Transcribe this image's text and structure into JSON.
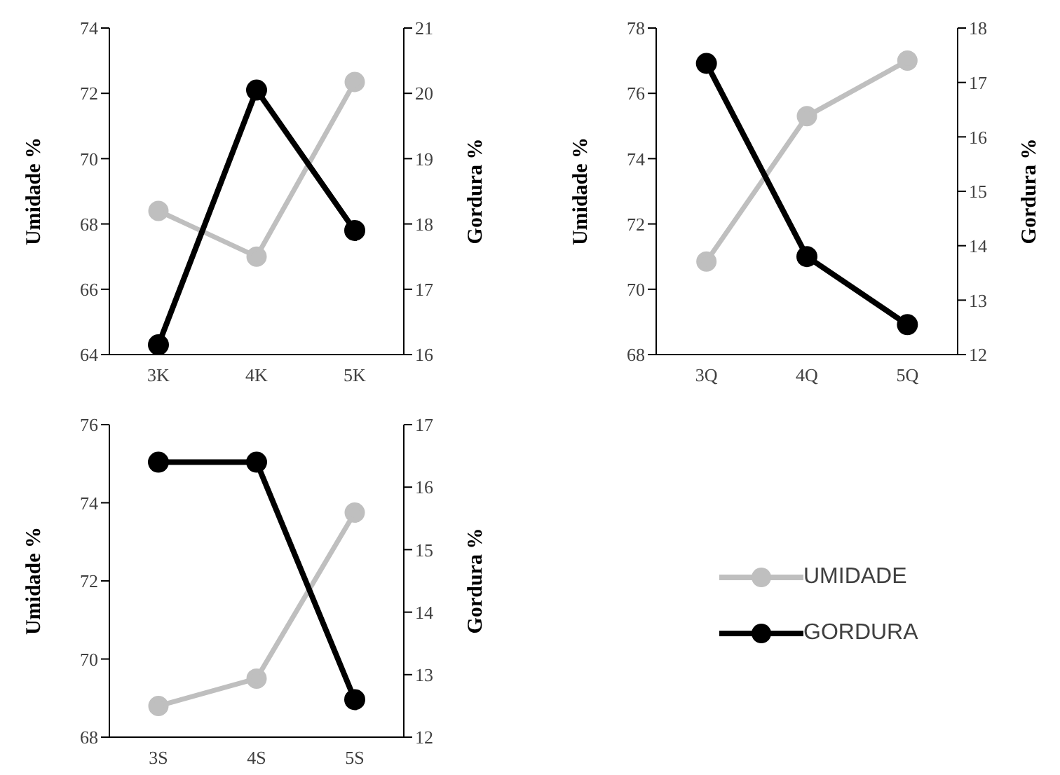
{
  "chart_data": [
    {
      "type": "line",
      "categories": [
        "3K",
        "4K",
        "5K"
      ],
      "ylabel": "Umidade %",
      "y2label": "Gordura %",
      "ylim": [
        64,
        74
      ],
      "yticks": [
        64,
        66,
        68,
        70,
        72,
        74
      ],
      "y2lim": [
        16,
        21
      ],
      "y2ticks": [
        16,
        17,
        18,
        19,
        20,
        21
      ],
      "marker": "circle",
      "legend": false,
      "grid": false,
      "series": [
        {
          "color": "#bfbfbf",
          "values": [
            68.4,
            67.0,
            72.35
          ]
        },
        {
          "color": "#000000",
          "axis": "y2",
          "values": [
            16.15,
            20.05,
            17.9
          ]
        }
      ]
    },
    {
      "type": "line",
      "categories": [
        "3Q",
        "4Q",
        "5Q"
      ],
      "ylabel": "Umidade %",
      "y2label": "Gordura %",
      "ylim": [
        68,
        78
      ],
      "yticks": [
        68,
        70,
        72,
        74,
        76,
        78
      ],
      "y2lim": [
        12,
        18
      ],
      "y2ticks": [
        12,
        13,
        14,
        15,
        16,
        17,
        18
      ],
      "marker": "circle",
      "legend": false,
      "grid": false,
      "series": [
        {
          "color": "#bfbfbf",
          "values": [
            70.85,
            75.3,
            77.0
          ]
        },
        {
          "color": "#000000",
          "axis": "y2",
          "values": [
            17.35,
            13.8,
            12.55
          ]
        }
      ]
    },
    {
      "type": "line",
      "categories": [
        "3S",
        "4S",
        "5S"
      ],
      "ylabel": "Umidade %",
      "y2label": "Gordura %",
      "ylim": [
        68,
        76
      ],
      "yticks": [
        68,
        70,
        72,
        74,
        76
      ],
      "y2lim": [
        12,
        17
      ],
      "y2ticks": [
        12,
        13,
        14,
        15,
        16,
        17
      ],
      "marker": "circle",
      "legend": "right",
      "grid": false,
      "series": [
        {
          "name": "UMIDADE",
          "color": "#bfbfbf",
          "values": [
            68.8,
            69.5,
            73.75
          ]
        },
        {
          "name": "GORDURA",
          "color": "#000000",
          "axis": "y2",
          "values": [
            16.4,
            16.4,
            12.6
          ]
        }
      ]
    }
  ]
}
